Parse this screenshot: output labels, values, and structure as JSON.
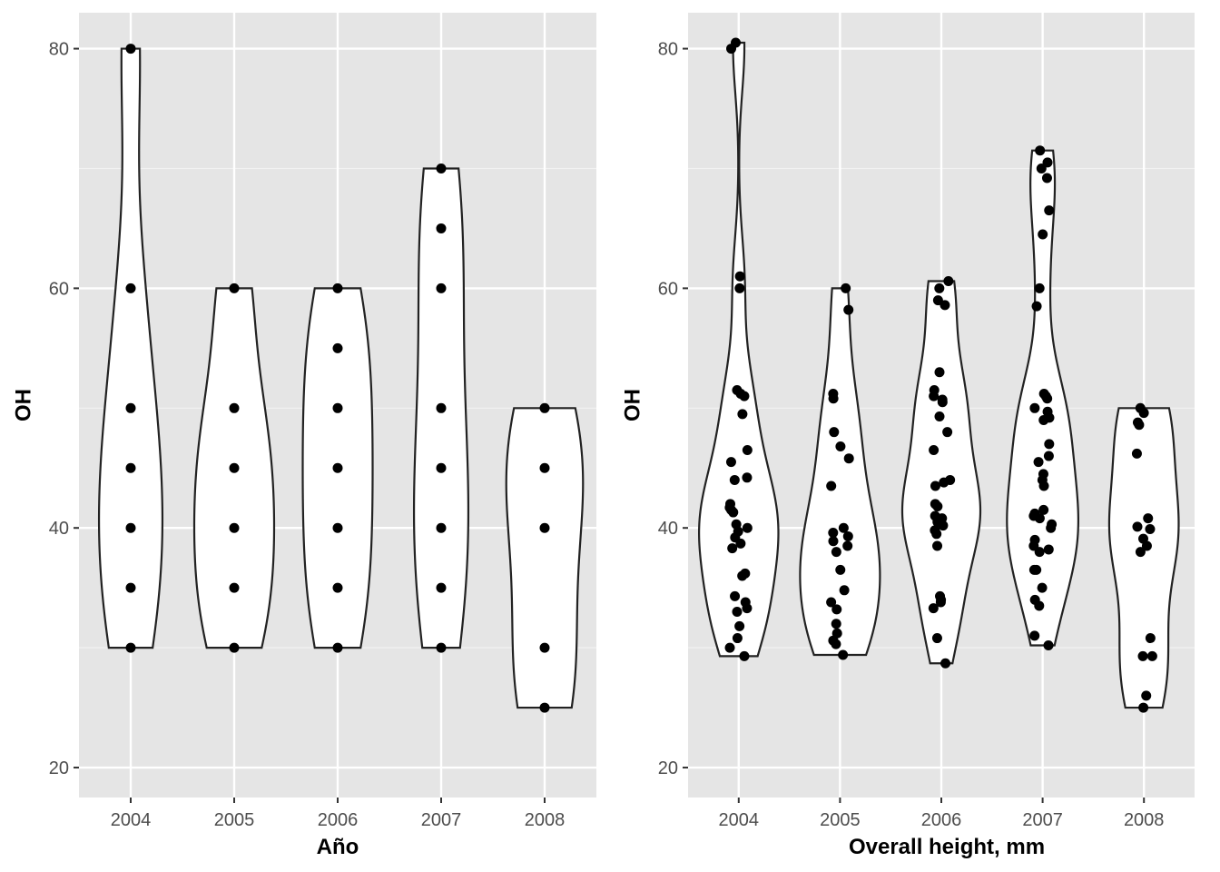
{
  "chart_data": [
    {
      "type": "violin",
      "title": "",
      "xlabel": "Año",
      "ylabel": "OH",
      "categories": [
        "2004",
        "2005",
        "2006",
        "2007",
        "2008"
      ],
      "yticks": [
        "20",
        "40",
        "60",
        "80"
      ],
      "ylim": [
        17.5,
        83
      ],
      "grid": true,
      "jitter": false,
      "points": [
        {
          "x": "2004",
          "y": [
            80,
            60,
            50,
            45,
            40,
            35,
            30
          ]
        },
        {
          "x": "2005",
          "y": [
            60,
            50,
            45,
            40,
            35,
            30
          ]
        },
        {
          "x": "2006",
          "y": [
            60,
            55,
            50,
            45,
            40,
            35,
            30
          ]
        },
        {
          "x": "2007",
          "y": [
            70,
            65,
            60,
            50,
            45,
            40,
            35,
            30
          ]
        },
        {
          "x": "2008",
          "y": [
            50,
            45,
            40,
            30,
            25
          ]
        }
      ]
    },
    {
      "type": "violin",
      "title": "",
      "xlabel": "Overall height, mm",
      "ylabel": "OH",
      "categories": [
        "2004",
        "2005",
        "2006",
        "2007",
        "2008"
      ],
      "yticks": [
        "20",
        "40",
        "60",
        "80"
      ],
      "ylim": [
        17.5,
        83
      ],
      "grid": true,
      "jitter": true,
      "points": [
        {
          "x": "2004",
          "y": [
            80.5,
            80,
            61,
            60,
            51.5,
            51.2,
            51,
            49.5,
            46.5,
            45.5,
            44.2,
            44,
            42,
            41.7,
            41.5,
            41.3,
            40.3,
            40,
            39.7,
            39.2,
            38.7,
            38.3,
            36.2,
            36,
            34.3,
            33.8,
            33.3,
            33,
            31.8,
            30.8,
            30,
            29.3
          ]
        },
        {
          "x": "2005",
          "y": [
            60,
            58.2,
            51.2,
            50.8,
            48,
            46.8,
            45.8,
            43.5,
            40,
            39.6,
            39.3,
            38.9,
            38.5,
            38,
            36.5,
            34.8,
            33.8,
            33.2,
            32,
            31.2,
            30.6,
            30.3,
            29.4
          ]
        },
        {
          "x": "2006",
          "y": [
            60.6,
            60,
            59,
            58.6,
            53,
            51.5,
            51,
            50.7,
            50.5,
            49.3,
            48,
            46.5,
            44,
            43.8,
            43.5,
            42,
            41.8,
            41,
            40.8,
            40.5,
            40.2,
            39.8,
            39.5,
            38.5,
            34.3,
            34,
            33.8,
            33.3,
            30.8,
            28.7
          ]
        },
        {
          "x": "2007",
          "y": [
            71.5,
            70.5,
            70,
            69.2,
            66.5,
            64.5,
            60,
            58.5,
            51.2,
            51,
            50.8,
            50,
            49.7,
            49.2,
            49,
            47,
            46,
            45.5,
            44.5,
            44,
            43.5,
            41.5,
            41.2,
            41,
            40.8,
            40.3,
            40,
            39,
            38.5,
            38.2,
            38,
            36.5,
            36.5,
            35,
            34,
            33.5,
            31,
            30.2
          ]
        },
        {
          "x": "2008",
          "y": [
            50,
            49.6,
            48.8,
            48.6,
            46.2,
            40.8,
            40.1,
            39.9,
            39.1,
            38.5,
            38,
            30.8,
            29.3,
            29.3,
            26,
            25
          ]
        }
      ]
    }
  ]
}
